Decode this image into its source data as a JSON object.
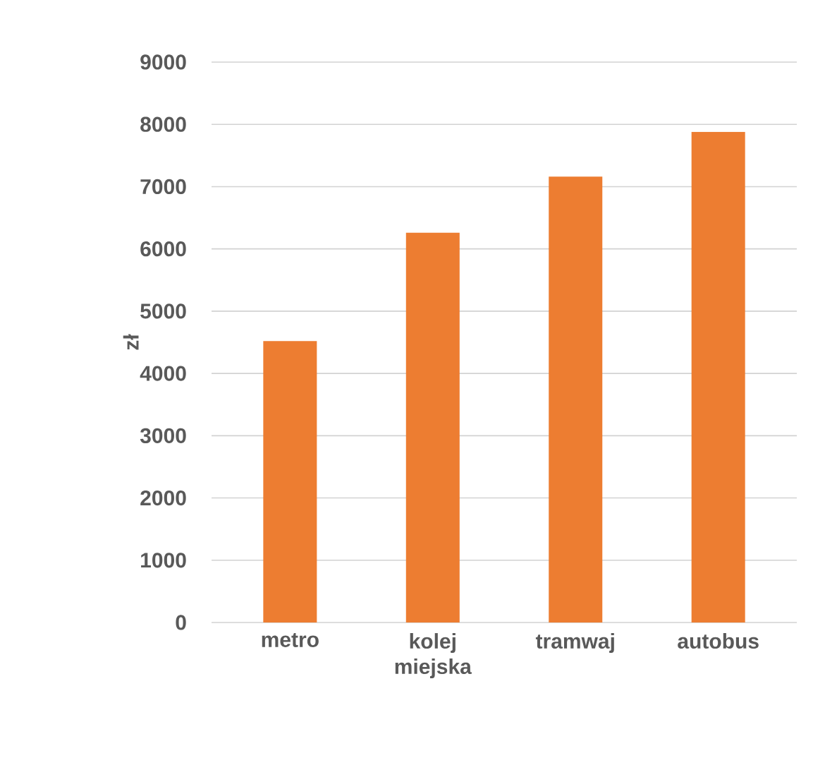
{
  "chart_data": {
    "type": "bar",
    "ylabel": "zł",
    "categories": [
      "metro",
      "kolej miejska",
      "tramwaj",
      "autobus"
    ],
    "values": [
      4520,
      6260,
      7160,
      7880
    ],
    "color": "#ed7d31",
    "ylim": [
      0,
      9000
    ],
    "yticks": [
      0,
      1000,
      2000,
      3000,
      4000,
      5000,
      6000,
      7000,
      8000,
      9000
    ],
    "grid": "y"
  }
}
